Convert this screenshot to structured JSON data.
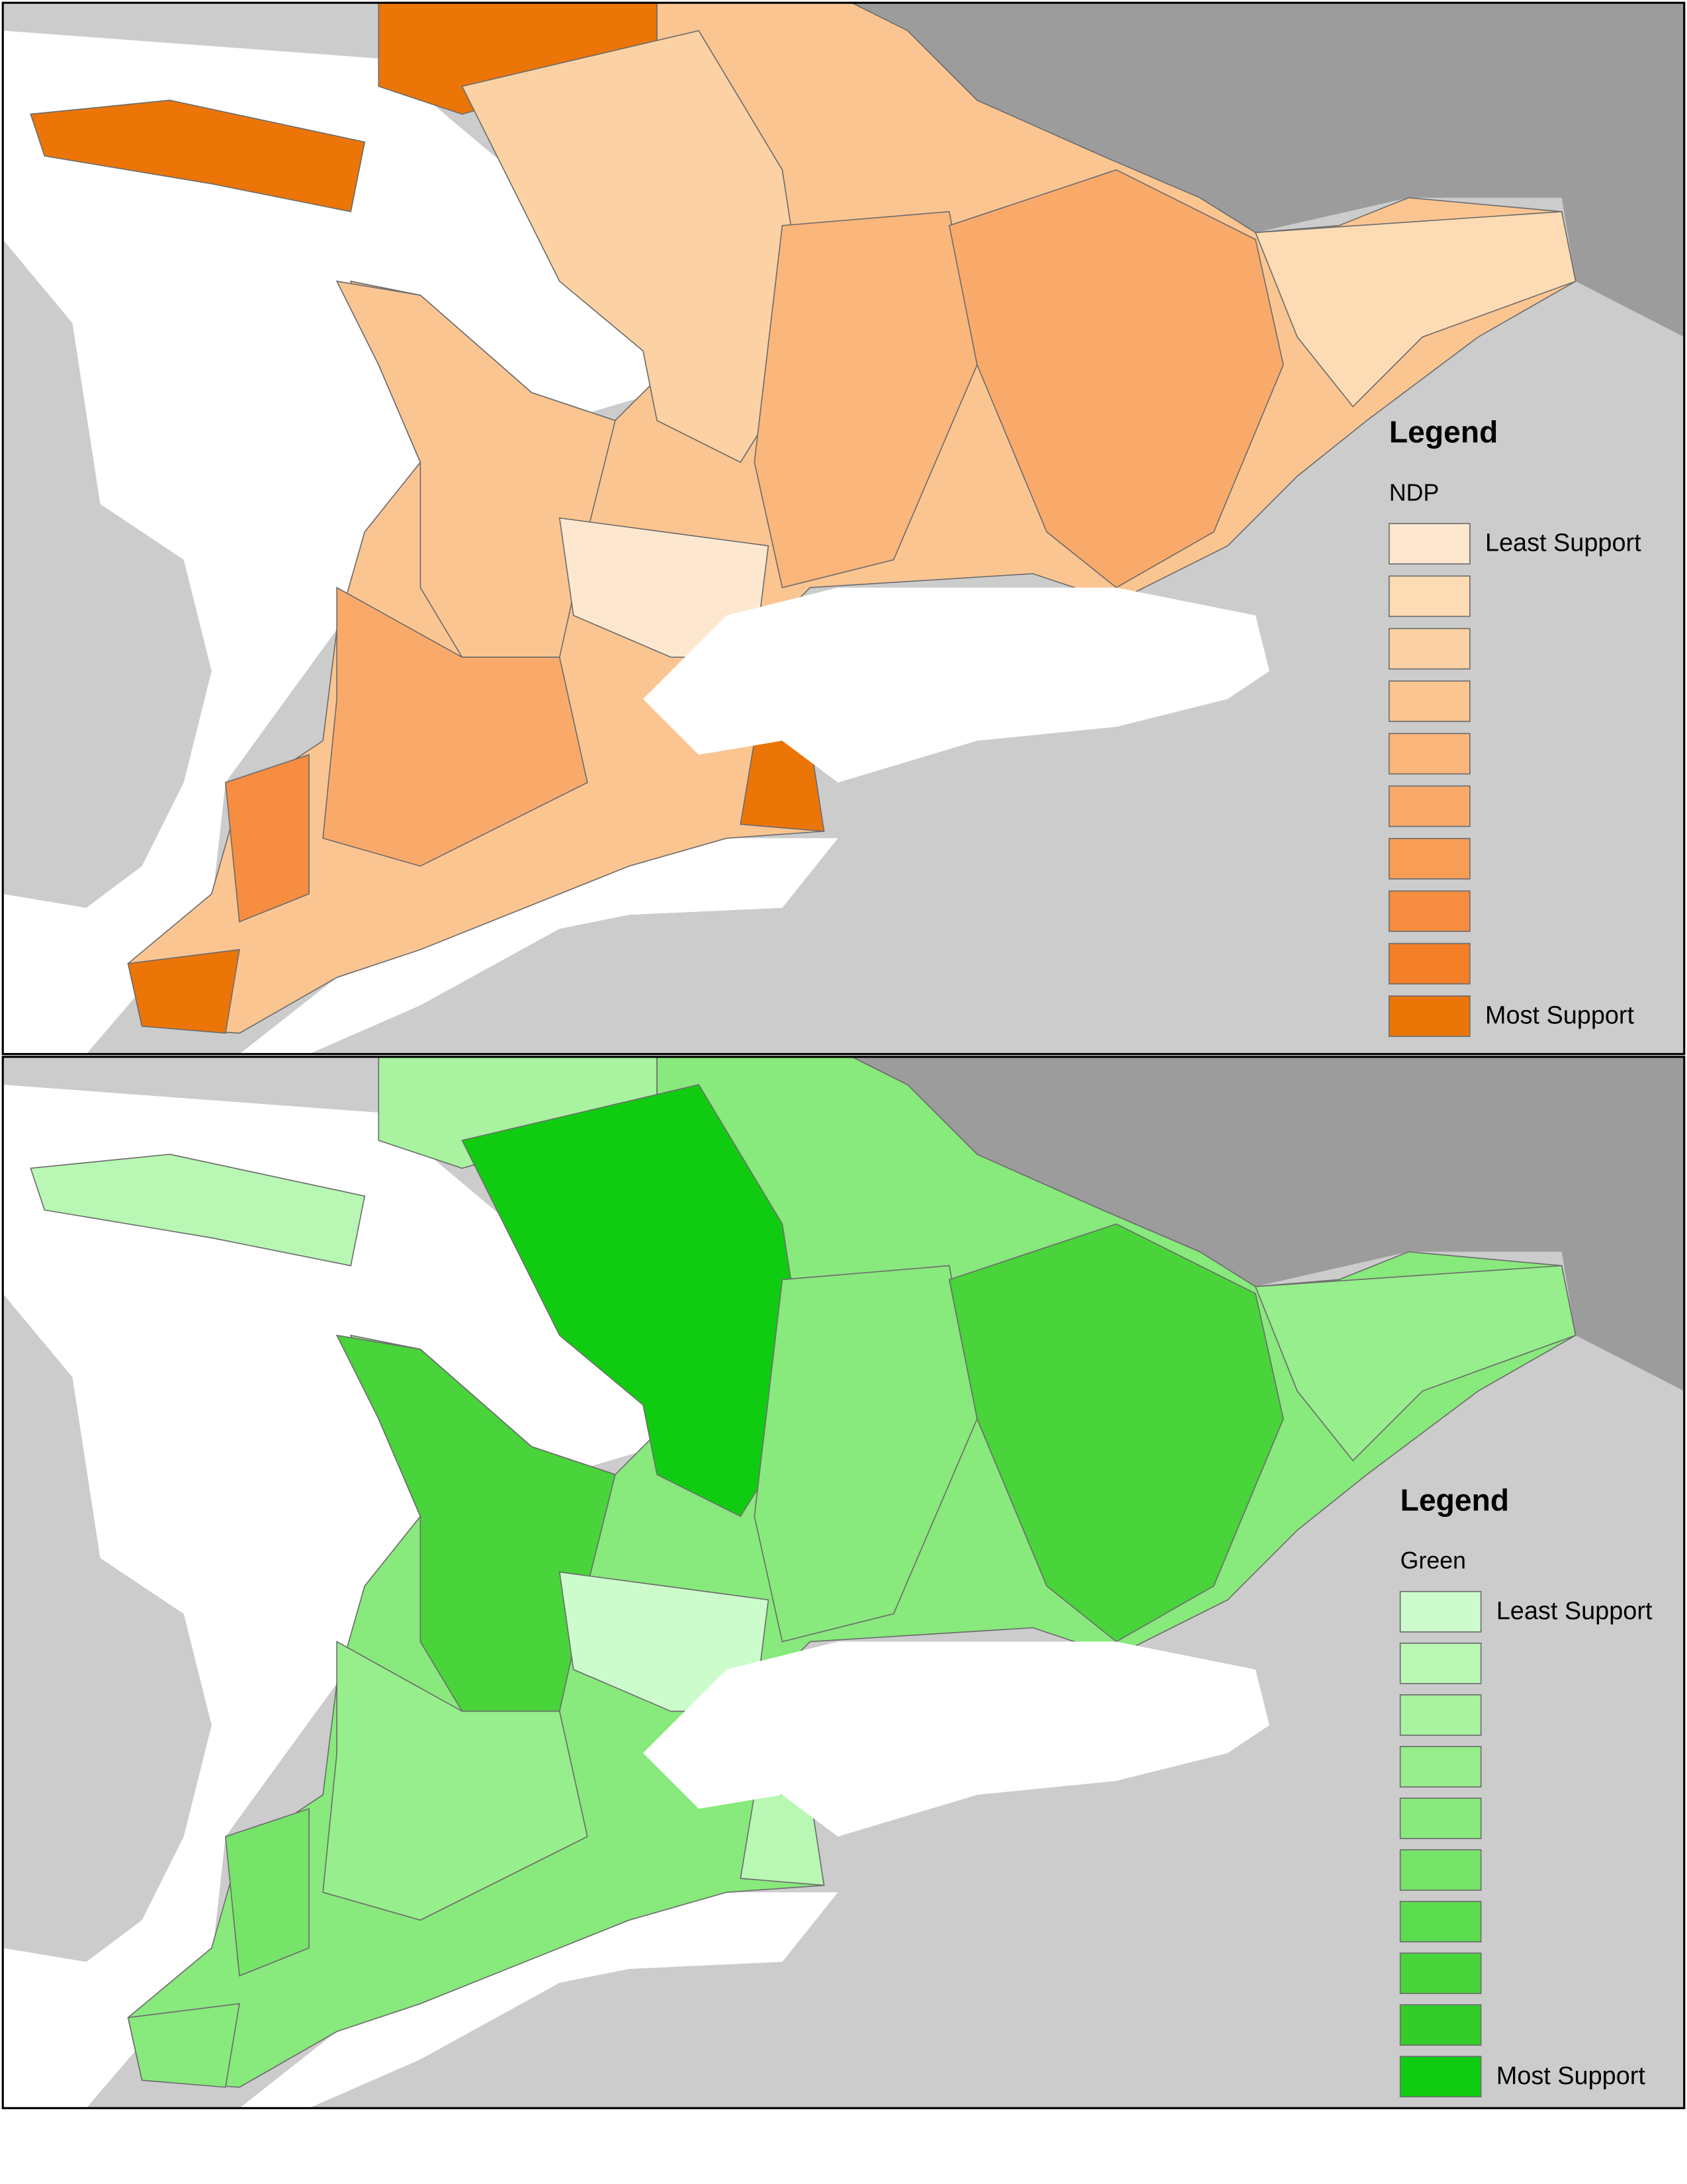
{
  "panels": [
    {
      "legend_title": "Legend",
      "party": "NDP",
      "least_label": "Least Support",
      "most_label": "Most Support",
      "colors": [
        "#fde8cf",
        "#fddcb5",
        "#fcd2a4",
        "#fbc592",
        "#fbb67c",
        "#f9aa6a",
        "#f89d56",
        "#f68d40",
        "#f47f26",
        "#ec7508"
      ]
    },
    {
      "legend_title": "Legend",
      "party": "Green",
      "least_label": "Least Support",
      "most_label": "Most Support",
      "colors": [
        "#ccfccc",
        "#b8f8b4",
        "#a8f2a0",
        "#97ee8c",
        "#88e97c",
        "#76e468",
        "#5bdc4e",
        "#48d43a",
        "#33cc28",
        "#10cc10"
      ]
    }
  ]
}
